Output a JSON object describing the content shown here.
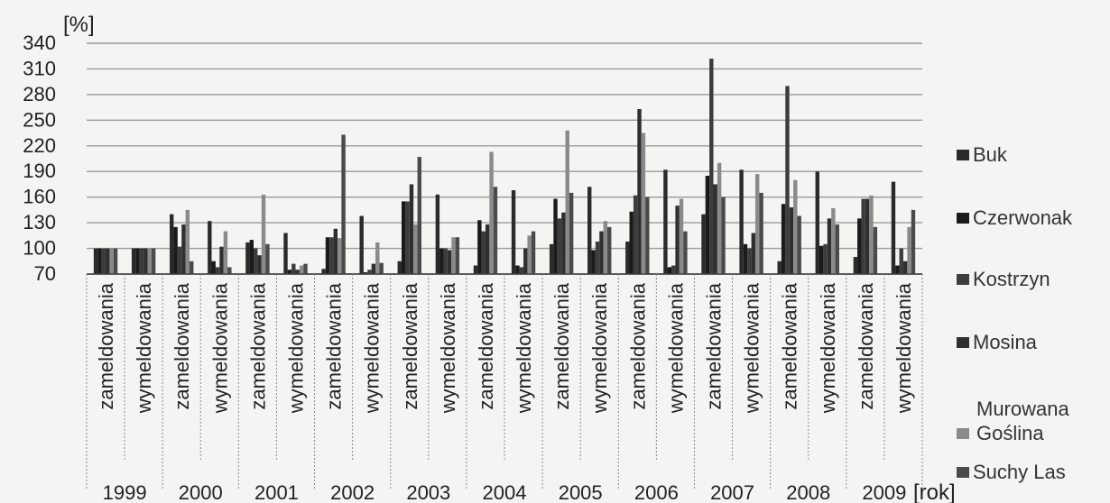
{
  "chart_data": {
    "type": "bar",
    "ylabel": "[%]",
    "xlabel": "[rok]",
    "ylim": [
      70,
      340
    ],
    "yticks": [
      70,
      100,
      130,
      160,
      190,
      220,
      250,
      280,
      310,
      340
    ],
    "grid": true,
    "legend_position": "right",
    "years": [
      "1999",
      "2000",
      "2001",
      "2002",
      "2003",
      "2004",
      "2005",
      "2006",
      "2007",
      "2008",
      "2009"
    ],
    "categories": [
      "zameldowania",
      "wymeldowania",
      "zameldowania",
      "wymeldowania",
      "zameldowania",
      "wymeldowania",
      "zameldowania",
      "wymeldowania",
      "zameldowania",
      "wymeldowania",
      "zameldowania",
      "wymeldowania",
      "zameldowania",
      "wymeldowania",
      "zameldowania",
      "wymeldowania",
      "zameldowania",
      "wymeldowania",
      "zameldowania",
      "wymeldowania",
      "zameldowania",
      "wymeldowania"
    ],
    "series": [
      {
        "name": "Buk",
        "color": "#2a2a2a",
        "values": [
          100,
          100,
          140,
          132,
          107,
          118,
          76,
          138,
          85,
          163,
          80,
          168,
          105,
          172,
          108,
          192,
          140,
          192,
          85,
          190,
          90,
          178
        ]
      },
      {
        "name": "Czerwonak",
        "color": "#1a1a1a",
        "values": [
          100,
          100,
          125,
          85,
          110,
          75,
          113,
          72,
          155,
          100,
          133,
          80,
          158,
          98,
          143,
          78,
          185,
          105,
          152,
          103,
          135,
          80
        ]
      },
      {
        "name": "Kostrzyn",
        "color": "#3c3c3c",
        "values": [
          100,
          100,
          102,
          78,
          100,
          82,
          113,
          75,
          155,
          100,
          120,
          78,
          135,
          108,
          162,
          80,
          322,
          100,
          290,
          105,
          158,
          100
        ]
      },
      {
        "name": "Mosina",
        "color": "#2f2f2f",
        "values": [
          100,
          100,
          128,
          102,
          92,
          75,
          123,
          82,
          175,
          98,
          128,
          100,
          142,
          120,
          263,
          150,
          175,
          118,
          148,
          135,
          158,
          85
        ]
      },
      {
        "name": "Murowana Goślina",
        "color": "#8a8a8a",
        "values": [
          100,
          100,
          145,
          120,
          163,
          80,
          112,
          107,
          128,
          113,
          213,
          115,
          238,
          132,
          235,
          158,
          200,
          187,
          180,
          147,
          162,
          125
        ]
      },
      {
        "name": "Suchy Las",
        "color": "#4a4a4a",
        "values": [
          100,
          100,
          85,
          78,
          105,
          82,
          233,
          83,
          207,
          113,
          172,
          120,
          165,
          125,
          160,
          120,
          160,
          165,
          138,
          128,
          125,
          145
        ]
      }
    ]
  },
  "legend": {
    "buk": "Buk",
    "czerwonak": "Czerwonak",
    "kostrzyn": "Kostrzyn",
    "mosina": "Mosina",
    "murowana": "Murowana Goślina",
    "suchy_las": "Suchy Las"
  }
}
